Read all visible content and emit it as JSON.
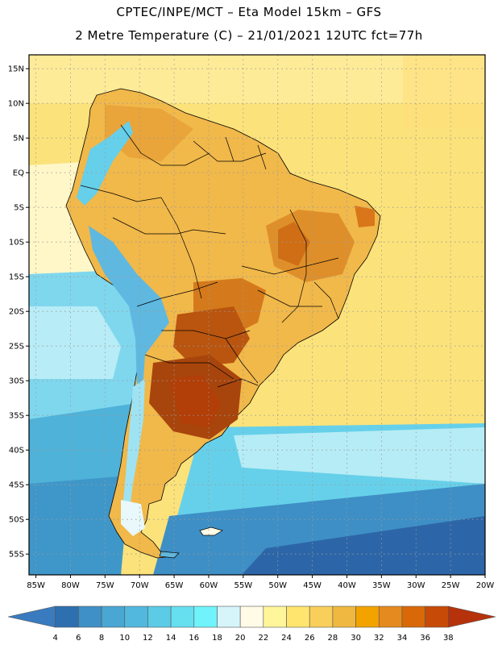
{
  "header": {
    "line1": "CPTEC/INPE/MCT –  Eta Model 15km – GFS",
    "line2": "2 Metre Temperature (C) – 21/01/2021 12UTC fct=77h"
  },
  "map_data": {
    "lon_range": [
      -86,
      -20
    ],
    "lat_range": [
      -58,
      17
    ],
    "lon_ticks": [
      "85W",
      "80W",
      "75W",
      "70W",
      "65W",
      "60W",
      "55W",
      "50W",
      "45W",
      "40W",
      "35W",
      "30W",
      "25W",
      "20W"
    ],
    "lat_ticks": [
      "15N",
      "10N",
      "5N",
      "EQ",
      "5S",
      "10S",
      "15S",
      "20S",
      "25S",
      "30S",
      "35S",
      "40S",
      "45S",
      "50S",
      "55S"
    ]
  },
  "colorbar": {
    "labels": [
      "4",
      "6",
      "8",
      "10",
      "12",
      "14",
      "16",
      "18",
      "20",
      "22",
      "24",
      "26",
      "28",
      "30",
      "32",
      "34",
      "36",
      "38"
    ],
    "colors": [
      "#3a7bbf",
      "#2e6fb0",
      "#3f90c6",
      "#4aa6d2",
      "#52b8de",
      "#5ccbe6",
      "#66dfef",
      "#70f3fa",
      "#d6f5fb",
      "#fffbe6",
      "#fff59a",
      "#ffe56e",
      "#f8cf5a",
      "#efb840",
      "#f2a300",
      "#e58a1e",
      "#d96908",
      "#c74b06",
      "#b5320b"
    ]
  },
  "colors": {
    "ocean_warm": "#fbe27a",
    "ocean_cool": "#5fc7e2",
    "ocean_cold": "#2e6fb0",
    "land": "#f1b84a",
    "hot": "#c9600f",
    "andes": "#6fd3ef"
  }
}
